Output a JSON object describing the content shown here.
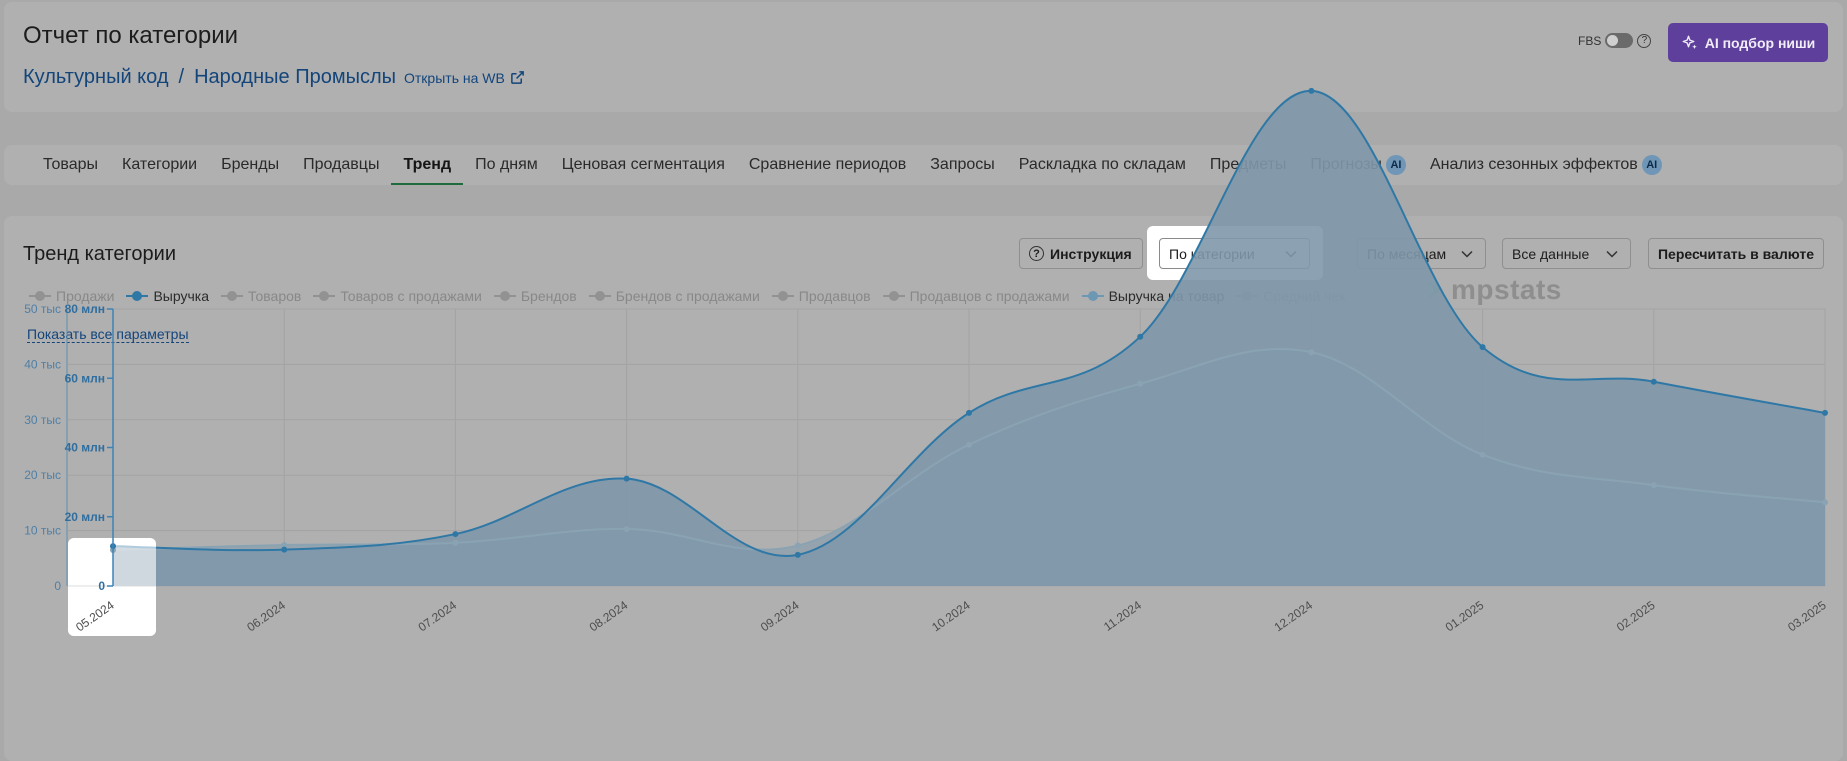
{
  "header": {
    "title": "Отчет по категории",
    "breadcrumb": [
      "Культурный код",
      "Народные Промыслы"
    ],
    "separator": "/",
    "open_wb": "Открыть на WB",
    "fbs_label": "FBS",
    "ai_button": "AI подбор ниши"
  },
  "tabs": [
    {
      "label": "Товары"
    },
    {
      "label": "Категории"
    },
    {
      "label": "Бренды"
    },
    {
      "label": "Продавцы"
    },
    {
      "label": "Тренд",
      "active": true
    },
    {
      "label": "По дням"
    },
    {
      "label": "Ценовая сегментация"
    },
    {
      "label": "Сравнение периодов"
    },
    {
      "label": "Запросы"
    },
    {
      "label": "Раскладка по складам"
    },
    {
      "label": "Предметы"
    },
    {
      "label": "Прогнозы",
      "badge": "AI"
    },
    {
      "label": "Анализ сезонных эффектов",
      "badge": "AI"
    }
  ],
  "trend": {
    "title": "Тренд категории",
    "instruction_button": "Инструкция",
    "select_category": "По категории",
    "select_period": "По месяцам",
    "select_data": "Все данные",
    "currency_button": "Пересчитать в валюте",
    "show_all": "Показать все параметры",
    "logo": "mpstats",
    "legend": [
      {
        "label": "Продажи",
        "active": false
      },
      {
        "label": "Выручка",
        "active": true
      },
      {
        "label": "Товаров",
        "active": false
      },
      {
        "label": "Товаров с продажами",
        "active": false
      },
      {
        "label": "Брендов",
        "active": false
      },
      {
        "label": "Брендов с продажами",
        "active": false
      },
      {
        "label": "Продавцов",
        "active": false
      },
      {
        "label": "Продавцов с продажами",
        "active": false
      },
      {
        "label": "Выручка на товар",
        "active": true
      },
      {
        "label": "Средний чек",
        "active": false
      }
    ]
  },
  "colors": {
    "revenue": "#2f78a6",
    "revenue_per_item": "#6c98b3",
    "ai_purple": "#5e3f9c",
    "link_blue": "#13457b"
  },
  "chart_data": {
    "type": "area",
    "x": [
      "05.2024",
      "06.2024",
      "07.2024",
      "08.2024",
      "09.2024",
      "10.2024",
      "11.2024",
      "12.2024",
      "01.2025",
      "02.2025",
      "03.2025"
    ],
    "series": [
      {
        "name": "Выручка",
        "axis": "right",
        "values": [
          11.5,
          10.5,
          15,
          31,
          9,
          50,
          72,
          143,
          69,
          59,
          50
        ]
      },
      {
        "name": "Выручка на товар",
        "axis": "left",
        "values": [
          6.5,
          7.4,
          7.8,
          10.3,
          7.3,
          25.5,
          36.5,
          42.2,
          23.7,
          18.2,
          15.1
        ]
      }
    ],
    "y_left": {
      "ticks": [
        "0",
        "10 тыс",
        "20 тыс",
        "30 тыс",
        "40 тыс",
        "50 тыс"
      ],
      "range": [
        0,
        50000
      ]
    },
    "y_right": {
      "ticks": [
        "0",
        "20 млн",
        "40 млн",
        "60 млн",
        "80 млн"
      ],
      "range": [
        0,
        80000000
      ]
    },
    "grid": true
  }
}
